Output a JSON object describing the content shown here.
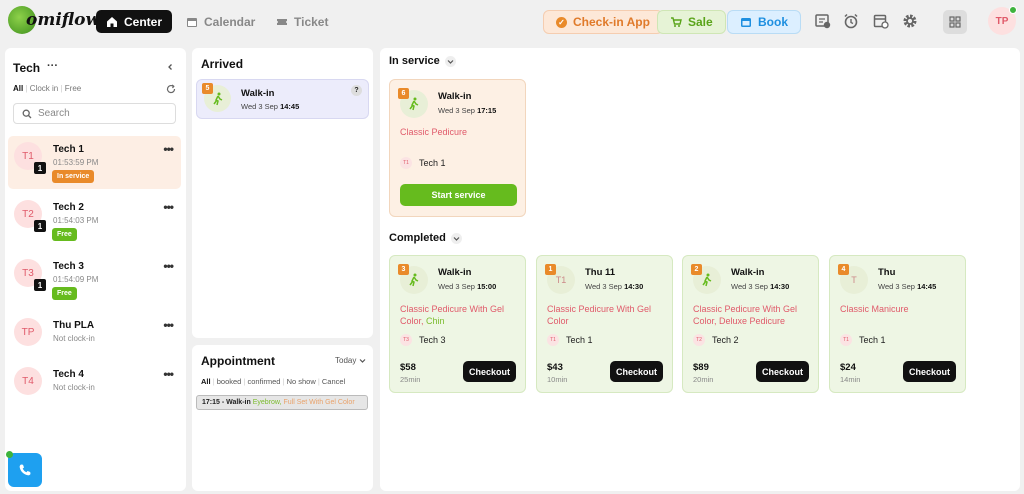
{
  "app": {
    "logo_text": "omiflow",
    "nav": [
      {
        "label": "Center",
        "icon": "home-icon",
        "active": true
      },
      {
        "label": "Calendar",
        "icon": "calendar-icon",
        "active": false
      },
      {
        "label": "Ticket",
        "icon": "ticket-icon",
        "active": false
      }
    ],
    "actions": {
      "checkin_label": "Check-in App",
      "sale_label": "Sale",
      "book_label": "Book"
    },
    "user_initials": "TP",
    "colors": {
      "accent_orange": "#e98a2a",
      "accent_green": "#66bb1e",
      "accent_blue": "#1e8fe0",
      "brand_pink": "#e05a6a"
    }
  },
  "tech_panel": {
    "title": "Tech",
    "more": "···",
    "filters": [
      "All",
      "Clock in",
      "Free"
    ],
    "search_placeholder": "Search",
    "techs": [
      {
        "initials": "T1",
        "count": "1",
        "name": "Tech 1",
        "time": "01:53:59 PM",
        "badge": "In service",
        "badge_color": "#e98a2a",
        "selected": true
      },
      {
        "initials": "T2",
        "count": "1",
        "name": "Tech 2",
        "time": "01:54:03 PM",
        "badge": "Free",
        "badge_color": "#66bb1e",
        "selected": false
      },
      {
        "initials": "T3",
        "count": "1",
        "name": "Tech 3",
        "time": "01:54:09 PM",
        "badge": "Free",
        "badge_color": "#66bb1e",
        "selected": false
      },
      {
        "initials": "TP",
        "count": "",
        "name": "Thu PLA",
        "time": "Not clock-in",
        "badge": "",
        "badge_color": "",
        "selected": false
      },
      {
        "initials": "T4",
        "count": "",
        "name": "Tech 4",
        "time": "Not clock-in",
        "badge": "",
        "badge_color": "",
        "selected": false
      }
    ]
  },
  "arrived": {
    "title": "Arrived",
    "cards": [
      {
        "num": "5",
        "title": "Walk-in",
        "date_prefix": "Wed 3 Sep",
        "time": "14:45",
        "help": "?"
      }
    ]
  },
  "appointment": {
    "title": "Appointment",
    "period": "Today",
    "filters": [
      "All",
      "booked",
      "confirmed",
      "No show",
      "Cancel"
    ],
    "items": [
      {
        "time_label": "17:15 - Walk-in",
        "service_green": "Eyebrow,",
        "service_orange": "Full Set With Gel Color"
      }
    ]
  },
  "in_service": {
    "title": "In service",
    "cards": [
      {
        "num": "6",
        "title": "Walk-in",
        "date_prefix": "Wed 3 Sep",
        "time": "17:15",
        "service": "Classic Pedicure",
        "tech_initials": "T1",
        "tech": "Tech 1",
        "button": "Start service"
      }
    ]
  },
  "completed": {
    "title": "Completed",
    "cards": [
      {
        "num": "3",
        "av": "",
        "title": "Walk-in",
        "date_prefix": "Wed 3 Sep",
        "time": "15:00",
        "service": "Classic Pedicure With Gel Color,",
        "service_alt": "Chin",
        "tech_initials": "T3",
        "tech": "Tech 3",
        "price": "$58",
        "duration": "25min",
        "button": "Checkout"
      },
      {
        "num": "1",
        "av": "T1",
        "title": "Thu 11",
        "date_prefix": "Wed 3 Sep",
        "time": "14:30",
        "service": "Classic Pedicure With Gel Color",
        "service_alt": "",
        "tech_initials": "T1",
        "tech": "Tech 1",
        "price": "$43",
        "duration": "10min",
        "button": "Checkout"
      },
      {
        "num": "2",
        "av": "",
        "title": "Walk-in",
        "date_prefix": "Wed 3 Sep",
        "time": "14:30",
        "service": "Classic Pedicure With Gel Color, Deluxe Pedicure",
        "service_alt": "",
        "tech_initials": "T2",
        "tech": "Tech 2",
        "price": "$89",
        "duration": "20min",
        "button": "Checkout"
      },
      {
        "num": "4",
        "av": "T",
        "title": "Thu",
        "date_prefix": "Wed 3 Sep",
        "time": "14:45",
        "service": "Classic Manicure",
        "service_alt": "",
        "tech_initials": "T1",
        "tech": "Tech 1",
        "price": "$24",
        "duration": "14min",
        "button": "Checkout"
      }
    ]
  }
}
